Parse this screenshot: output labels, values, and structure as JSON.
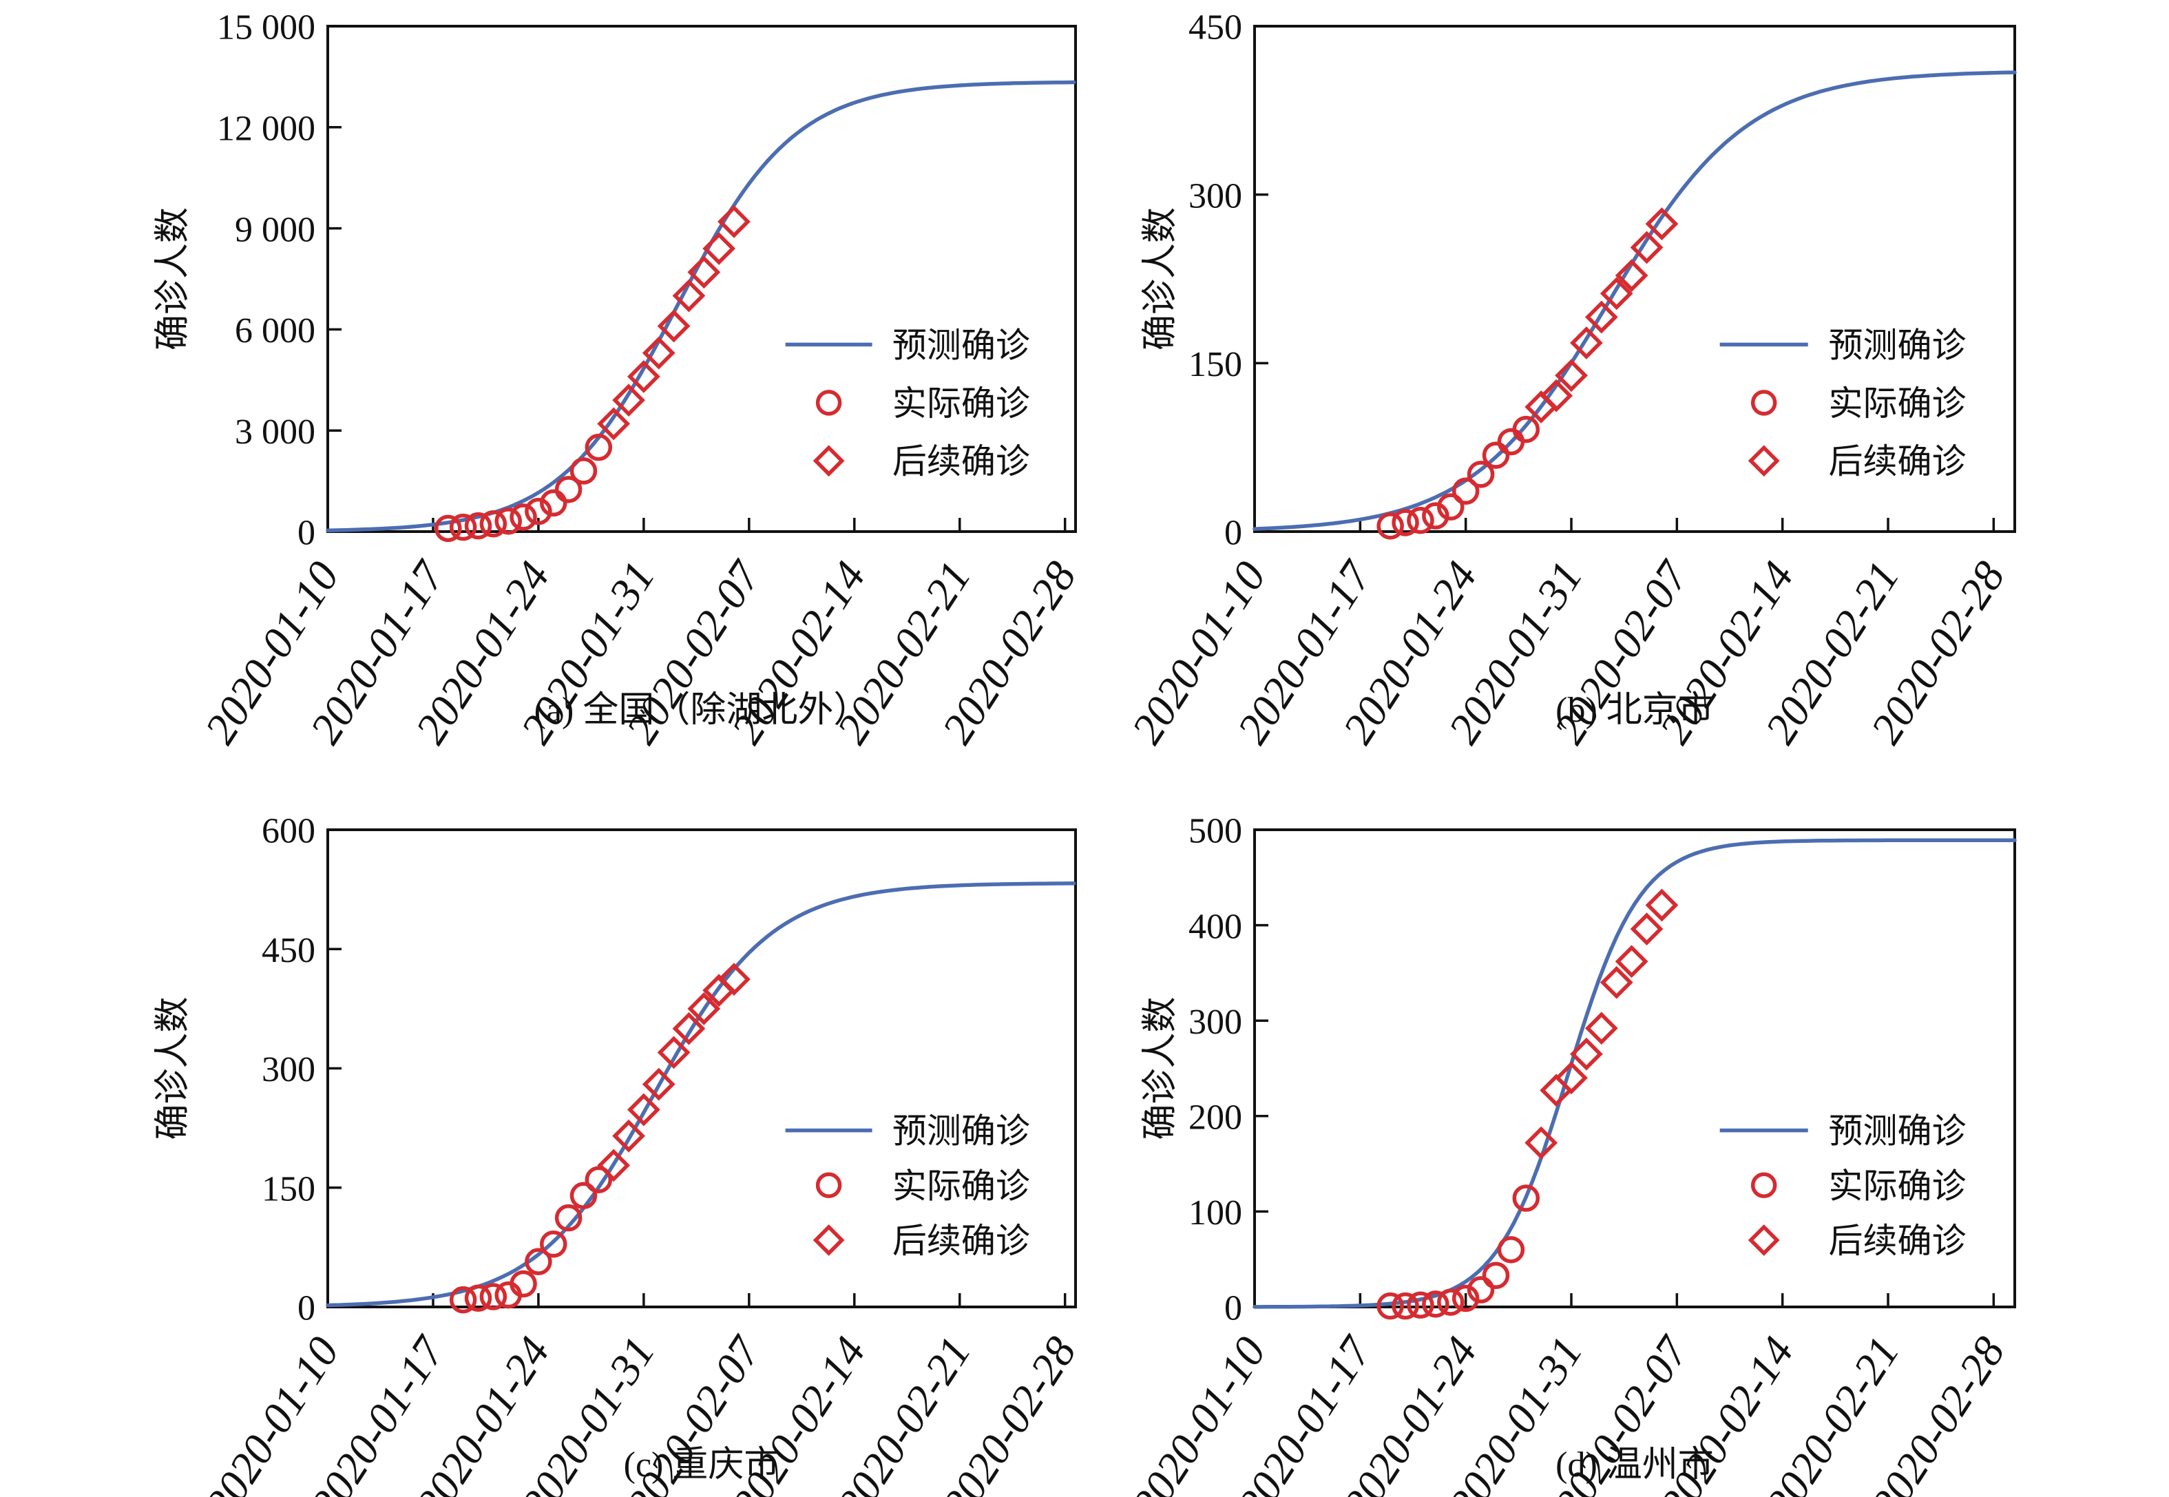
{
  "figure": {
    "background": "#ffffff",
    "axis_color": "#111111",
    "text_color": "#111111",
    "series_colors": {
      "predicted": "#4c6db1",
      "observed": "#d62b30"
    },
    "ylabel": "确诊人数",
    "x_axis": {
      "start_date": "2020-01-10",
      "tick_interval_days": 7,
      "rotation_deg": 57,
      "tick_labels": [
        "2020-01-10",
        "2020-01-17",
        "2020-01-24",
        "2020-01-31",
        "2020-02-07",
        "2020-02-14",
        "2020-02-21",
        "2020-02-28"
      ]
    },
    "legend": [
      {
        "symbol": "line",
        "label": "预测确诊"
      },
      {
        "symbol": "circle",
        "label": "实际确诊"
      },
      {
        "symbol": "diamond",
        "label": "后续确诊"
      }
    ]
  },
  "chart_data": [
    {
      "id": "a",
      "caption": "(a) 全国（除湖北外）",
      "type": "line+scatter",
      "ylim": [
        0,
        15000
      ],
      "ytick_values": [
        0,
        3000,
        6000,
        9000,
        12000,
        15000
      ],
      "ytick_labels": [
        "0",
        "3 000",
        "6 000",
        "9 000",
        "12 000",
        "15 000"
      ],
      "predicted_curve": {
        "model": "logistic",
        "plateau": 13350,
        "midpoint_day": 23.2,
        "growth_rate": 0.256
      },
      "series": [
        {
          "name": "实际确诊",
          "marker": "circle",
          "dates": [
            "2020-01-18",
            "2020-01-19",
            "2020-01-20",
            "2020-01-21",
            "2020-01-22",
            "2020-01-23",
            "2020-01-24",
            "2020-01-25",
            "2020-01-26",
            "2020-01-27",
            "2020-01-28"
          ],
          "values": [
            95,
            130,
            170,
            230,
            310,
            430,
            600,
            850,
            1250,
            1800,
            2500
          ]
        },
        {
          "name": "后续确诊",
          "marker": "diamond",
          "dates": [
            "2020-01-29",
            "2020-01-30",
            "2020-01-31",
            "2020-02-01",
            "2020-02-02",
            "2020-02-03",
            "2020-02-04",
            "2020-02-05",
            "2020-02-06"
          ],
          "values": [
            3200,
            3900,
            4600,
            5300,
            6100,
            7000,
            7700,
            8400,
            9200
          ]
        }
      ]
    },
    {
      "id": "b",
      "caption": "(b) 北京市",
      "type": "line+scatter",
      "ylim": [
        0,
        450
      ],
      "ytick_values": [
        0,
        150,
        300,
        450
      ],
      "ytick_labels": [
        "0",
        "150",
        "300",
        "450"
      ],
      "predicted_curve": {
        "model": "logistic",
        "plateau": 410,
        "midpoint_day": 23.5,
        "growth_rate": 0.219
      },
      "series": [
        {
          "name": "实际确诊",
          "marker": "circle",
          "dates": [
            "2020-01-19",
            "2020-01-20",
            "2020-01-21",
            "2020-01-22",
            "2020-01-23",
            "2020-01-24",
            "2020-01-25",
            "2020-01-26",
            "2020-01-27",
            "2020-01-28"
          ],
          "values": [
            5,
            8,
            10,
            14,
            22,
            36,
            51,
            68,
            80,
            91
          ]
        },
        {
          "name": "后续确诊",
          "marker": "diamond",
          "dates": [
            "2020-01-29",
            "2020-01-30",
            "2020-01-31",
            "2020-02-01",
            "2020-02-02",
            "2020-02-03",
            "2020-02-04",
            "2020-02-05",
            "2020-02-06"
          ],
          "values": [
            111,
            121,
            139,
            168,
            191,
            212,
            228,
            253,
            274
          ]
        }
      ]
    },
    {
      "id": "c",
      "caption": "(c) 重庆市",
      "type": "line+scatter",
      "ylim": [
        0,
        600
      ],
      "ytick_values": [
        0,
        150,
        300,
        450,
        600
      ],
      "ytick_labels": [
        "0",
        "150",
        "300",
        "450",
        "600"
      ],
      "predicted_curve": {
        "model": "logistic",
        "plateau": 533,
        "midpoint_day": 21.65,
        "growth_rate": 0.256
      },
      "series": [
        {
          "name": "实际确诊",
          "marker": "circle",
          "dates": [
            "2020-01-19",
            "2020-01-20",
            "2020-01-21",
            "2020-01-22",
            "2020-01-23",
            "2020-01-24",
            "2020-01-25",
            "2020-01-26",
            "2020-01-27",
            "2020-01-28"
          ],
          "values": [
            9,
            11,
            13,
            15,
            29,
            57,
            79,
            112,
            140,
            160
          ]
        },
        {
          "name": "后续确诊",
          "marker": "diamond",
          "dates": [
            "2020-01-29",
            "2020-01-30",
            "2020-01-31",
            "2020-02-01",
            "2020-02-02",
            "2020-02-03",
            "2020-02-04",
            "2020-02-05",
            "2020-02-06"
          ],
          "values": [
            178,
            215,
            248,
            280,
            320,
            350,
            375,
            398,
            412
          ]
        }
      ]
    },
    {
      "id": "d",
      "caption": "(d) 温州市",
      "type": "line+scatter",
      "ylim": [
        0,
        500
      ],
      "ytick_values": [
        0,
        100,
        200,
        300,
        400,
        500
      ],
      "ytick_labels": [
        "0",
        "100",
        "200",
        "300",
        "400",
        "500"
      ],
      "predicted_curve": {
        "model": "logistic",
        "plateau": 489,
        "midpoint_day": 20.8,
        "growth_rate": 0.42
      },
      "series": [
        {
          "name": "实际确诊",
          "marker": "circle",
          "dates": [
            "2020-01-19",
            "2020-01-20",
            "2020-01-21",
            "2020-01-22",
            "2020-01-23",
            "2020-01-24",
            "2020-01-25",
            "2020-01-26",
            "2020-01-27",
            "2020-01-28"
          ],
          "values": [
            1,
            1,
            2,
            3,
            5,
            9,
            18,
            33,
            60,
            114
          ]
        },
        {
          "name": "后续确诊",
          "marker": "diamond",
          "dates": [
            "2020-01-29",
            "2020-01-30",
            "2020-01-31",
            "2020-02-01",
            "2020-02-02",
            "2020-02-03",
            "2020-02-04",
            "2020-02-05",
            "2020-02-06"
          ],
          "values": [
            172,
            227,
            240,
            265,
            292,
            340,
            362,
            396,
            421
          ]
        }
      ]
    }
  ]
}
